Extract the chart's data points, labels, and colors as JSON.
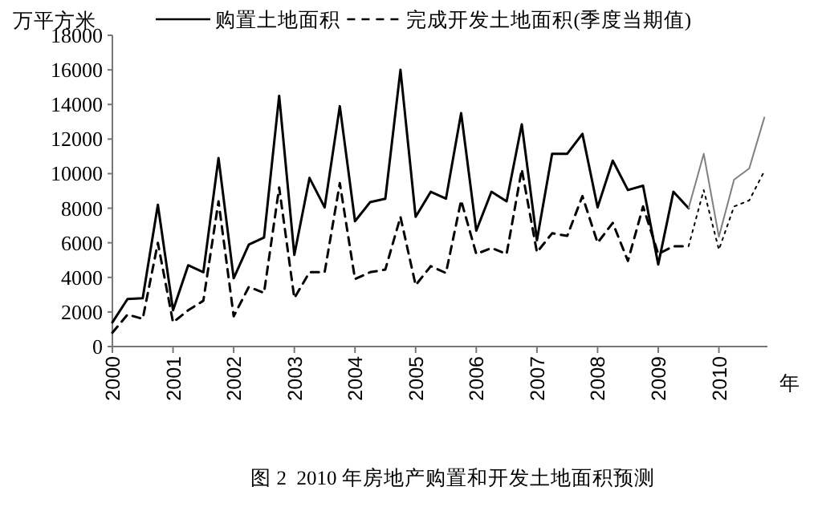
{
  "chart_data": {
    "type": "line",
    "ylabel": "万平方米",
    "xlabel": "年",
    "annotations": [
      "图 2  2010 年房地产购置和开发土地面积预测"
    ],
    "xlim": [
      2000,
      2010.8
    ],
    "xticks": [
      2000,
      2001,
      2002,
      2003,
      2004,
      2005,
      2006,
      2007,
      2008,
      2009,
      2010
    ],
    "ylim": [
      0,
      18000
    ],
    "yticks": [
      0,
      2000,
      4000,
      6000,
      8000,
      10000,
      12000,
      14000,
      16000,
      18000
    ],
    "grid": false,
    "legend": "top",
    "marker": "none",
    "series": [
      {
        "name": "购置土地面积",
        "color": "#000000",
        "line_style": "solid",
        "x": [
          2000,
          2000.25,
          2000.5,
          2000.75,
          2001,
          2001.25,
          2001.5,
          2001.75,
          2002,
          2002.25,
          2002.5,
          2002.75,
          2003,
          2003.25,
          2003.5,
          2003.75,
          2004,
          2004.25,
          2004.5,
          2004.75,
          2005,
          2005.25,
          2005.5,
          2005.75,
          2006,
          2006.25,
          2006.5,
          2006.75,
          2007,
          2007.25,
          2007.5,
          2007.75,
          2008,
          2008.25,
          2008.5,
          2008.75,
          2009,
          2009.25,
          2009.5
        ],
        "values": [
          1400,
          2750,
          2800,
          8200,
          2100,
          4700,
          4300,
          10900,
          3950,
          5900,
          6300,
          14500,
          5300,
          9750,
          8050,
          13900,
          7250,
          8350,
          8550,
          16000,
          7500,
          8950,
          8550,
          13500,
          6700,
          8950,
          8400,
          12850,
          6150,
          11150,
          11150,
          12300,
          8050,
          10750,
          9050,
          9300,
          4750,
          8950,
          8000
        ]
      },
      {
        "name": "完成开发土地面积(季度当期值)",
        "color": "#000000",
        "line_style": "dashed",
        "x": [
          2000,
          2000.25,
          2000.5,
          2000.75,
          2001,
          2001.25,
          2001.5,
          2001.75,
          2002,
          2002.25,
          2002.5,
          2002.75,
          2003,
          2003.25,
          2003.5,
          2003.75,
          2004,
          2004.25,
          2004.5,
          2004.75,
          2005,
          2005.25,
          2005.5,
          2005.75,
          2006,
          2006.25,
          2006.5,
          2006.75,
          2007,
          2007.25,
          2007.5,
          2007.75,
          2008,
          2008.25,
          2008.5,
          2008.75,
          2009,
          2009.25,
          2009.5
        ],
        "values": [
          800,
          1850,
          1600,
          6000,
          1400,
          2100,
          2650,
          8400,
          1750,
          3450,
          3100,
          9200,
          2800,
          4300,
          4300,
          9450,
          3900,
          4300,
          4450,
          7500,
          3550,
          4650,
          4250,
          8450,
          5350,
          5700,
          5350,
          10250,
          5450,
          6550,
          6400,
          8700,
          6000,
          7150,
          4950,
          8100,
          5350,
          5800,
          5800
        ]
      },
      {
        "color": "#808080",
        "line_style": "solid",
        "x": [
          2009.5,
          2009.75,
          2010,
          2010.25,
          2010.5,
          2010.75
        ],
        "values": [
          8000,
          11150,
          6350,
          9650,
          10300,
          13250
        ]
      },
      {
        "color": "#000000",
        "line_style": "dotted",
        "x": [
          2009.5,
          2009.75,
          2010,
          2010.25,
          2010.5,
          2010.75
        ],
        "values": [
          5800,
          9050,
          5600,
          8100,
          8450,
          10150
        ]
      }
    ]
  }
}
